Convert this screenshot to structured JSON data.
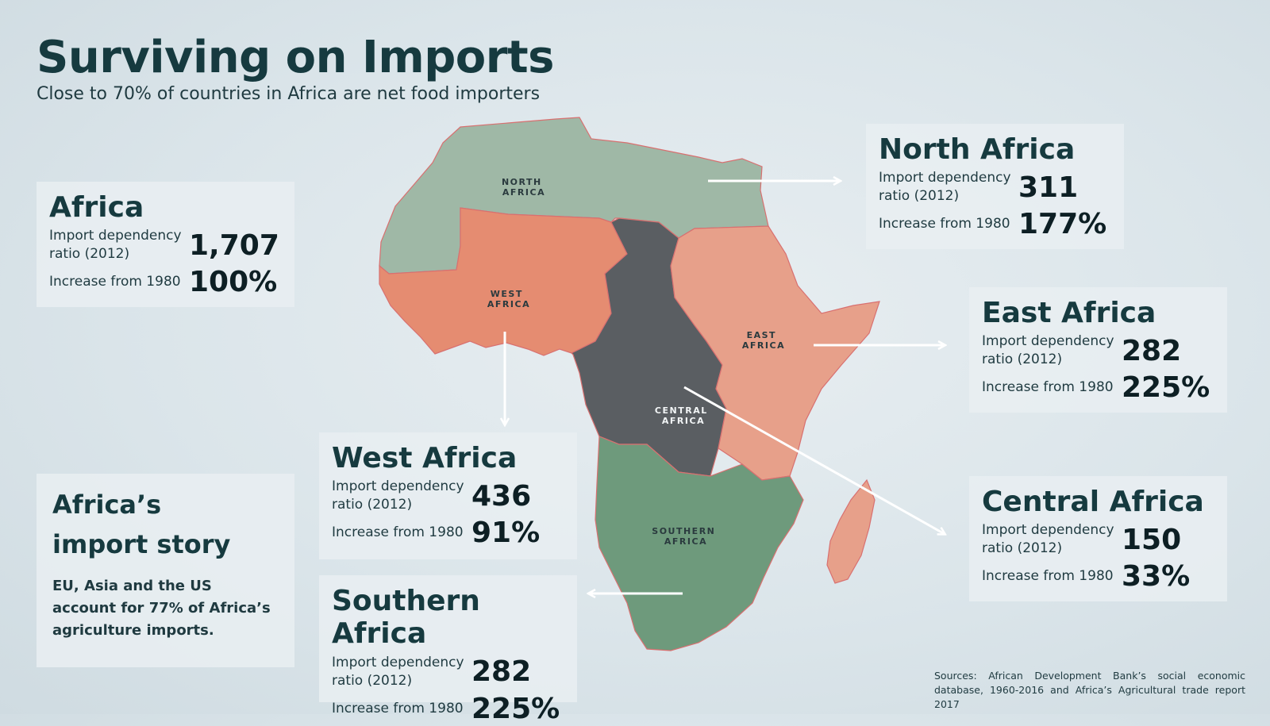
{
  "title": "Surviving on Imports",
  "subtitle": "Close to 70% of countries in Africa are net food importers",
  "stat_labels": {
    "ratio": "Import dependency ratio (2012)",
    "increase": "Increase from 1980"
  },
  "africa": {
    "name": "Africa",
    "ratio": "1,707",
    "increase": "100%"
  },
  "regions": [
    {
      "name": "North Africa",
      "map_label_line1": "NORTH",
      "map_label_line2": "AFRICA",
      "ratio": "311",
      "increase": "177%",
      "color": "#9fb8a6"
    },
    {
      "name": "West Africa",
      "map_label_line1": "WEST",
      "map_label_line2": "AFRICA",
      "ratio": "436",
      "increase": "91%",
      "color": "#e58c71"
    },
    {
      "name": "East Africa",
      "map_label_line1": "EAST",
      "map_label_line2": "AFRICA",
      "ratio": "282",
      "increase": "225%",
      "color": "#e7a08a"
    },
    {
      "name": "Central Africa",
      "map_label_line1": "CENTRAL",
      "map_label_line2": "AFRICA",
      "ratio": "150",
      "increase": "33%",
      "color": "#5a5e62"
    },
    {
      "name": "Southern Africa",
      "map_label_line1": "SOUTHERN",
      "map_label_line2": "AFRICA",
      "ratio": "282",
      "increase": "225%",
      "color": "#6e9a7c"
    }
  ],
  "story": {
    "title_line1": "Africa’s",
    "title_line2": "import story",
    "text": "EU, Asia and the US account for 77% of Africa’s agriculture imports."
  },
  "sources": "Sources: African Development Bank’s social economic database, 1960-2016 and Africa’s Agricultural trade report 2017",
  "colors": {
    "title": "#163a3f",
    "arrow": "#ffffff",
    "border": "#d87070"
  }
}
